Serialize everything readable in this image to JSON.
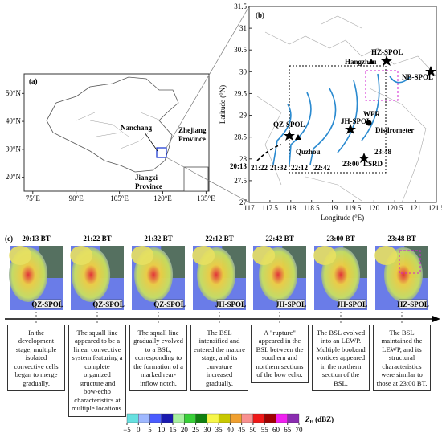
{
  "panel_a": {
    "label": "(a)",
    "xlim": [
      72,
      136
    ],
    "ylim": [
      15,
      57
    ],
    "xticks": [
      {
        "value": 75,
        "label": "75°E"
      },
      {
        "value": 90,
        "label": "90°E"
      },
      {
        "value": 105,
        "label": "105°E"
      },
      {
        "value": 120,
        "label": "120°E"
      },
      {
        "value": 135,
        "label": "135°E"
      }
    ],
    "yticks": [
      {
        "value": 50,
        "label": "50°N"
      },
      {
        "value": 40,
        "label": "40°N"
      },
      {
        "value": 30,
        "label": "30°N"
      },
      {
        "value": 20,
        "label": "20°N"
      }
    ],
    "places": {
      "nanchang": "Nanchang",
      "zhejiang": [
        "Zhejiang",
        "Province"
      ],
      "jiangxi": [
        "Jiangxi",
        "Province"
      ]
    }
  },
  "panel_b": {
    "label": "(b)",
    "xlabel": "Longitude (°E)",
    "ylabel": "Latitude (°N)",
    "xlim": [
      117,
      121.5
    ],
    "ylim": [
      27,
      31.5
    ],
    "xticks": [
      117,
      117.5,
      118,
      118.5,
      119,
      119.5,
      120,
      120.5,
      121,
      121.5
    ],
    "yticks": [
      27,
      27.5,
      28,
      28.5,
      29,
      29.5,
      30,
      30.5,
      31,
      31.5
    ],
    "annotations": {
      "hz_spol": "HZ-SPOL",
      "hangzhou": "Hangzhou",
      "nb_spol": "NB-SPOL",
      "qz_spol": "QZ-SPOL",
      "quzhou": "Quzhou",
      "jh_spol": "JH-SPOL",
      "wpr": "WPR",
      "disdrometer": "Disdrometer",
      "t2348": "23:48",
      "t2300": "23:00",
      "lsrd": "LSRD",
      "t2013": "20:13",
      "t2122": "21:22",
      "t2132": "21:32",
      "t2212": "22:12",
      "t2242": "22:42"
    }
  },
  "panel_c": {
    "label": "(c)",
    "frames": [
      {
        "time": "20:13 BT",
        "radar": "QZ-SPOL",
        "text": "In the development stage, multiple isolated convective cells began to merge gradually."
      },
      {
        "time": "21:22 BT",
        "radar": "QZ-SPOL",
        "text": "The squall line appeared to be a linear convective system featuring a complete organized structure and bow-echo characteristics at multiple locations."
      },
      {
        "time": "21:32 BT",
        "radar": "QZ-SPOL",
        "text": "The squall line gradually evolved to a BSL, corresponding to the formation of a marked rear-inflow notch."
      },
      {
        "time": "22:12 BT",
        "radar": "JH-SPOL",
        "text": "The BSL intensified and entered the mature stage, and its curvature increased gradually."
      },
      {
        "time": "22:42 BT",
        "radar": "JH-SPOL",
        "text": "A \"rupture\" appeared in the BSL between the southern and northern sections of the bow echo."
      },
      {
        "time": "23:00 BT",
        "radar": "JH-SPOL",
        "text": "The BSL evolved into an LEWP. Multiple bookend vortices appeared in the northern section of the BSL."
      },
      {
        "time": "23:48 BT",
        "radar": "HZ-SPOL",
        "text": "The BSL maintained the LEWP, and its structural characteristics were similar to those at 23:00 BT."
      }
    ]
  },
  "colorbar": {
    "symbol": "Z",
    "subscript": "H",
    "unit": "(dBZ)",
    "ticks": [
      {
        "value": -5,
        "label": "−5"
      },
      0,
      5,
      10,
      15,
      20,
      25,
      30,
      35,
      40,
      45,
      50,
      55,
      60,
      65,
      70
    ],
    "colors": [
      "#66e0e0",
      "#9fb8ff",
      "#4a5cff",
      "#1a1ab0",
      "#a8f0a0",
      "#38d038",
      "#108010",
      "#f6f64a",
      "#c8c800",
      "#f0a030",
      "#f89090",
      "#f01818",
      "#a00000",
      "#f020f0",
      "#8a2cb0"
    ]
  }
}
